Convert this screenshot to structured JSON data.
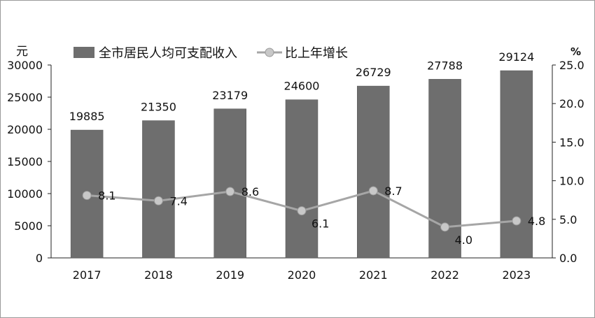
{
  "chart_data": {
    "type": "bar+line",
    "categories": [
      "2017",
      "2018",
      "2019",
      "2020",
      "2021",
      "2022",
      "2023"
    ],
    "series": [
      {
        "name": "全市居民人均可支配收入",
        "type": "bar",
        "axis": "left",
        "values": [
          19885,
          21350,
          23179,
          24600,
          26729,
          27788,
          29124
        ],
        "color": "#6e6e6e"
      },
      {
        "name": "比上年增长",
        "type": "line",
        "axis": "right",
        "values": [
          8.1,
          7.4,
          8.6,
          6.1,
          8.7,
          4.0,
          4.8
        ],
        "color": "#a6a6a6",
        "marker_color": "#c8c8c8"
      }
    ],
    "left_axis": {
      "unit": "元",
      "ylim": [
        0,
        30000
      ],
      "ticks": [
        "0",
        "5000",
        "10000",
        "15000",
        "20000",
        "25000",
        "30000"
      ]
    },
    "right_axis": {
      "unit": "%",
      "ylim": [
        0,
        25
      ],
      "ticks": [
        "0.0",
        "5.0",
        "10.0",
        "15.0",
        "20.0",
        "25.0"
      ]
    },
    "bar_labels": [
      "19885",
      "21350",
      "23179",
      "24600",
      "26729",
      "27788",
      "29124"
    ],
    "line_labels": [
      "8.1",
      "7.4",
      "8.6",
      "6.1",
      "8.7",
      "4.0",
      "4.8"
    ],
    "legend": "top",
    "grid": false
  }
}
